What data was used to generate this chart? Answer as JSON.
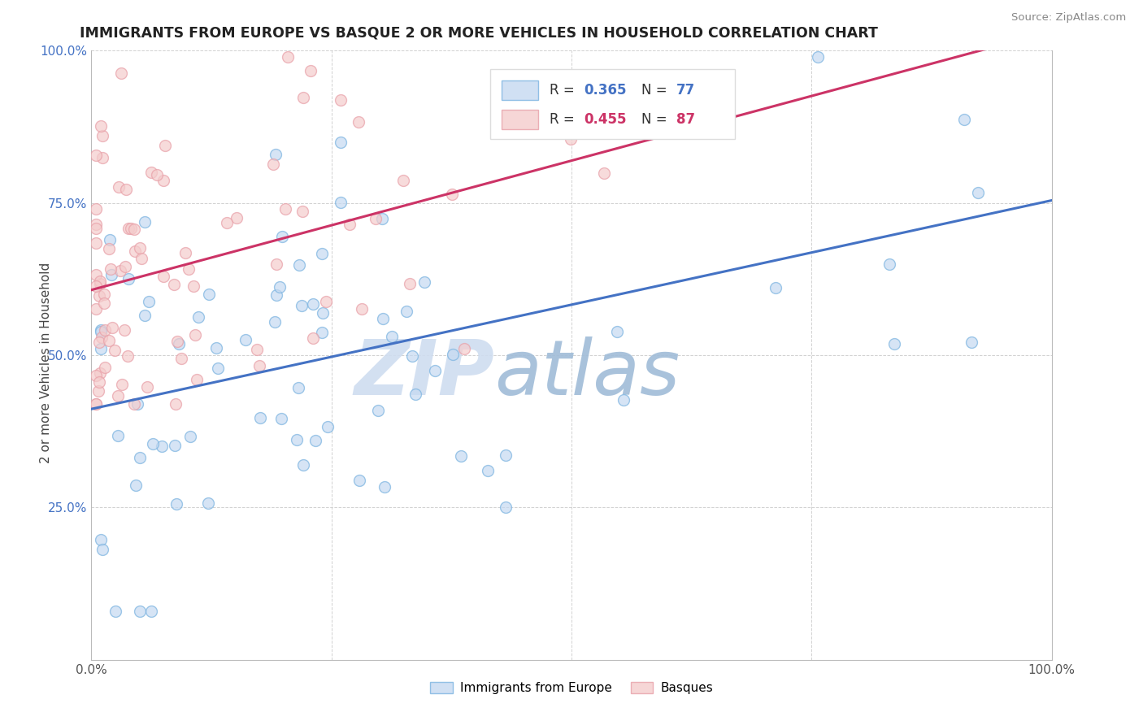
{
  "title": "IMMIGRANTS FROM EUROPE VS BASQUE 2 OR MORE VEHICLES IN HOUSEHOLD CORRELATION CHART",
  "source": "Source: ZipAtlas.com",
  "ylabel": "2 or more Vehicles in Household",
  "blue_R": 0.365,
  "blue_N": 77,
  "pink_R": 0.455,
  "pink_N": 87,
  "blue_color": "#7ab3e0",
  "pink_color": "#e8a0a8",
  "blue_line_color": "#4472c4",
  "pink_line_color": "#cc3366",
  "blue_fill_color": "#c5d9f1",
  "pink_fill_color": "#f4cccc",
  "legend_label_blue": "Immigrants from Europe",
  "legend_label_pink": "Basques",
  "ytick_color": "#4472c4",
  "watermark_zip_color": "#cfddf0",
  "watermark_atlas_color": "#a0bcd8"
}
